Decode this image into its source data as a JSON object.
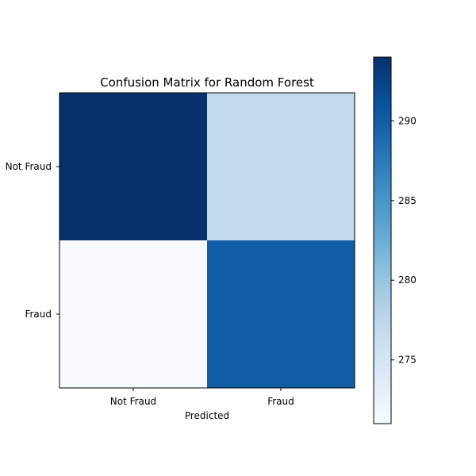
{
  "chart_data": {
    "type": "heatmap",
    "title": "Confusion Matrix for Random Forest",
    "xlabel": "Predicted",
    "ylabel": "",
    "x_categories": [
      "Not Fraud",
      "Fraud"
    ],
    "y_categories": [
      "Not Fraud",
      "Fraud"
    ],
    "values": [
      [
        294,
        277
      ],
      [
        271,
        289
      ]
    ],
    "colormap": "Blues",
    "colorbar": {
      "range": [
        271,
        294
      ],
      "ticks": [
        275,
        280,
        285,
        290
      ],
      "tick_labels": [
        "275",
        "280",
        "285",
        "290"
      ]
    },
    "colors": {
      "cells": [
        [
          "#08306b",
          "#c3d9ed"
        ],
        [
          "#f7fbff",
          "#115ca5"
        ]
      ]
    }
  }
}
